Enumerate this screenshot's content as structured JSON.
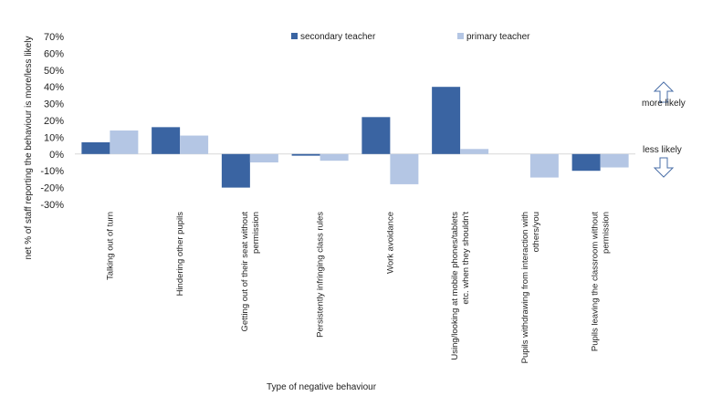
{
  "chart_data": {
    "type": "bar",
    "title": "",
    "xlabel": "Type of negative behaviour",
    "ylabel": "net % of staff reporting the behaviour is more/less likely",
    "ylim": [
      -30,
      70
    ],
    "yticks": [
      70,
      60,
      50,
      40,
      30,
      20,
      10,
      0,
      -10,
      -20,
      -30
    ],
    "ytick_labels": [
      "70%",
      "60%",
      "50%",
      "40%",
      "30%",
      "20%",
      "10%",
      "0%",
      "-10%",
      "-20%",
      "-30%"
    ],
    "grid": false,
    "legend_position": "top",
    "categories": [
      [
        "Talking out of turn"
      ],
      [
        "Hindering other pupils"
      ],
      [
        "Getting out of their seat without",
        "permission"
      ],
      [
        "Persistently infringing class rules"
      ],
      [
        "Work avoidance"
      ],
      [
        "Using/looking at mobile phones/tablets",
        "etc. when they shouldn't"
      ],
      [
        "Pupils withdrawing from interaction with",
        "others/you"
      ],
      [
        "Pupils leaving the classroom without",
        "permission"
      ]
    ],
    "series": [
      {
        "name": "secondary teacher",
        "color": "#3a64a2",
        "values": [
          7,
          16,
          -20,
          -1,
          22,
          40,
          0,
          -10
        ]
      },
      {
        "name": "primary teacher",
        "color": "#b4c6e4",
        "values": [
          14,
          11,
          -5,
          -4,
          -18,
          3,
          -14,
          -8
        ]
      }
    ],
    "annotations": {
      "up": "more likely",
      "down": "less likely"
    }
  }
}
